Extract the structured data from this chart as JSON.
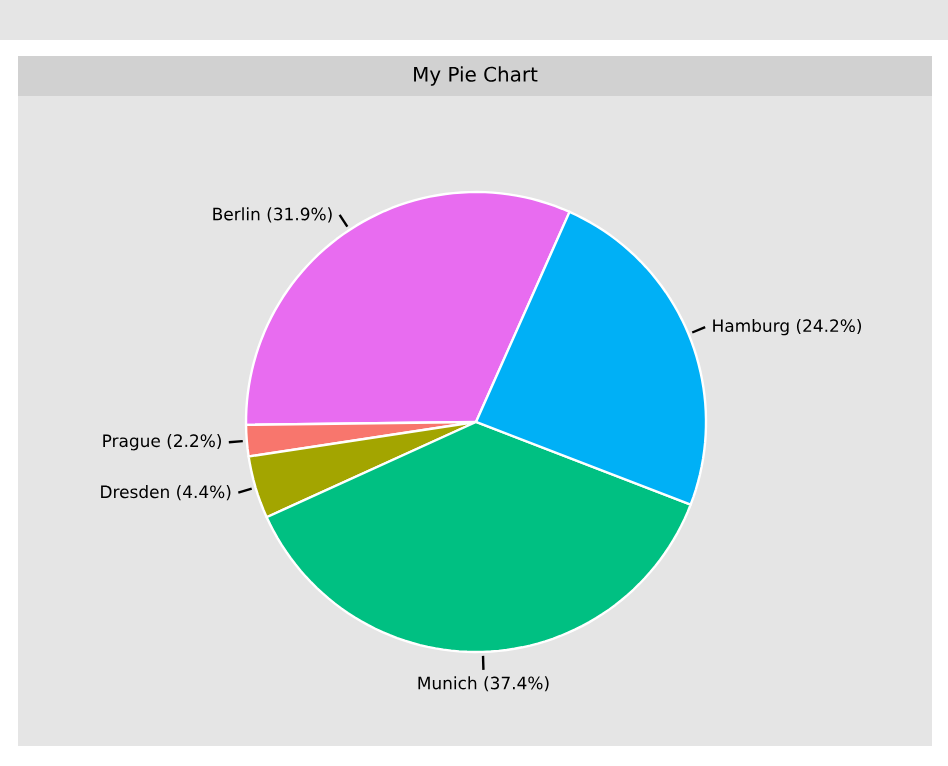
{
  "chart_data": {
    "type": "pie",
    "title": "My Pie Chart",
    "categories": [
      "Berlin (31.9%)",
      "Prague (2.2%)",
      "Dresden (4.4%)",
      "Munich (37.4%)",
      "Hamburg (24.2%)"
    ],
    "values": [
      31.9,
      2.2,
      4.4,
      37.4,
      24.2
    ],
    "colors": [
      "#e86cf0",
      "#f8766d",
      "#a3a500",
      "#00c082",
      "#00b0f6"
    ]
  }
}
